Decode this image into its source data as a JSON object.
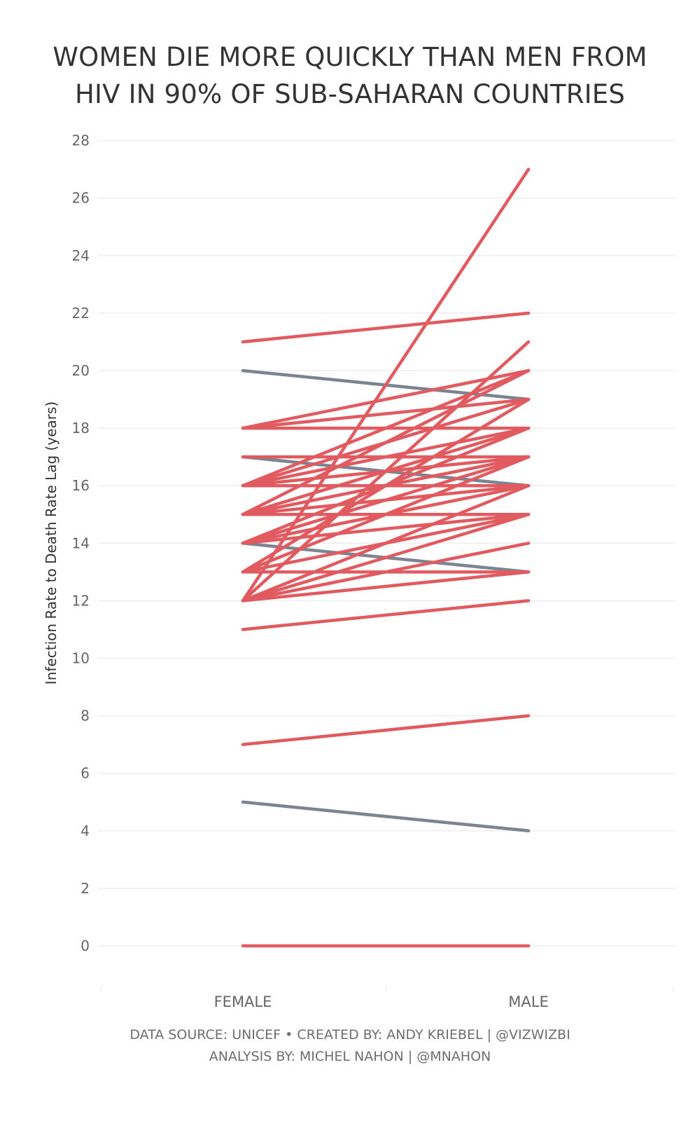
{
  "chart_data": {
    "type": "line",
    "title_lines": [
      "WOMEN DIE MORE QUICKLY THAN MEN FROM",
      "HIV IN 90% OF SUB-SAHARAN COUNTRIES"
    ],
    "ylabel": "Infection Rate to Death Rate Lag (years)",
    "categories": [
      "FEMALE",
      "MALE"
    ],
    "yticks": [
      0,
      2,
      4,
      6,
      8,
      10,
      12,
      14,
      16,
      18,
      20,
      22,
      24,
      26,
      28
    ],
    "ylim": [
      -1.5,
      28
    ],
    "grid": true,
    "colors": {
      "female_faster": "#e05a5f",
      "male_faster": "#7d8491",
      "grid": "#eeeeee",
      "tick_text": "#666666"
    },
    "series": [
      {
        "values": [
          12,
          27
        ],
        "group": "female_faster"
      },
      {
        "values": [
          21,
          22
        ],
        "group": "female_faster"
      },
      {
        "values": [
          12,
          21
        ],
        "group": "female_faster"
      },
      {
        "values": [
          16,
          20
        ],
        "group": "female_faster"
      },
      {
        "values": [
          15,
          20
        ],
        "group": "female_faster"
      },
      {
        "values": [
          18,
          20
        ],
        "group": "female_faster"
      },
      {
        "values": [
          13,
          19
        ],
        "group": "female_faster"
      },
      {
        "values": [
          16,
          19
        ],
        "group": "female_faster"
      },
      {
        "values": [
          18,
          19
        ],
        "group": "female_faster"
      },
      {
        "values": [
          18,
          18
        ],
        "group": "female_faster"
      },
      {
        "values": [
          14,
          18
        ],
        "group": "female_faster"
      },
      {
        "values": [
          16,
          18
        ],
        "group": "female_faster"
      },
      {
        "values": [
          15,
          18
        ],
        "group": "female_faster"
      },
      {
        "values": [
          17,
          17
        ],
        "group": "female_faster"
      },
      {
        "values": [
          16,
          17
        ],
        "group": "female_faster"
      },
      {
        "values": [
          13,
          17
        ],
        "group": "female_faster"
      },
      {
        "values": [
          15,
          17
        ],
        "group": "female_faster"
      },
      {
        "values": [
          14,
          17
        ],
        "group": "female_faster"
      },
      {
        "values": [
          16,
          16
        ],
        "group": "female_faster"
      },
      {
        "values": [
          15,
          16
        ],
        "group": "female_faster"
      },
      {
        "values": [
          12,
          16
        ],
        "group": "female_faster"
      },
      {
        "values": [
          14,
          16
        ],
        "group": "female_faster"
      },
      {
        "values": [
          15,
          15
        ],
        "group": "female_faster"
      },
      {
        "values": [
          12,
          15
        ],
        "group": "female_faster"
      },
      {
        "values": [
          14,
          15
        ],
        "group": "female_faster"
      },
      {
        "values": [
          13,
          15
        ],
        "group": "female_faster"
      },
      {
        "values": [
          12,
          14
        ],
        "group": "female_faster"
      },
      {
        "values": [
          13,
          13
        ],
        "group": "female_faster"
      },
      {
        "values": [
          12,
          13
        ],
        "group": "female_faster"
      },
      {
        "values": [
          11,
          12
        ],
        "group": "female_faster"
      },
      {
        "values": [
          7,
          8
        ],
        "group": "female_faster"
      },
      {
        "values": [
          0,
          0
        ],
        "group": "female_faster"
      },
      {
        "values": [
          20,
          19
        ],
        "group": "male_faster"
      },
      {
        "values": [
          17,
          16
        ],
        "group": "male_faster"
      },
      {
        "values": [
          14,
          13
        ],
        "group": "male_faster"
      },
      {
        "values": [
          5,
          4
        ],
        "group": "male_faster"
      }
    ]
  },
  "footer": {
    "line1": "DATA SOURCE: UNICEF  •  CREATED BY: ANDY KRIEBEL | @VIZWIZBI",
    "line2": "ANALYSIS BY: MICHEL NAHON | @MNAHON"
  }
}
